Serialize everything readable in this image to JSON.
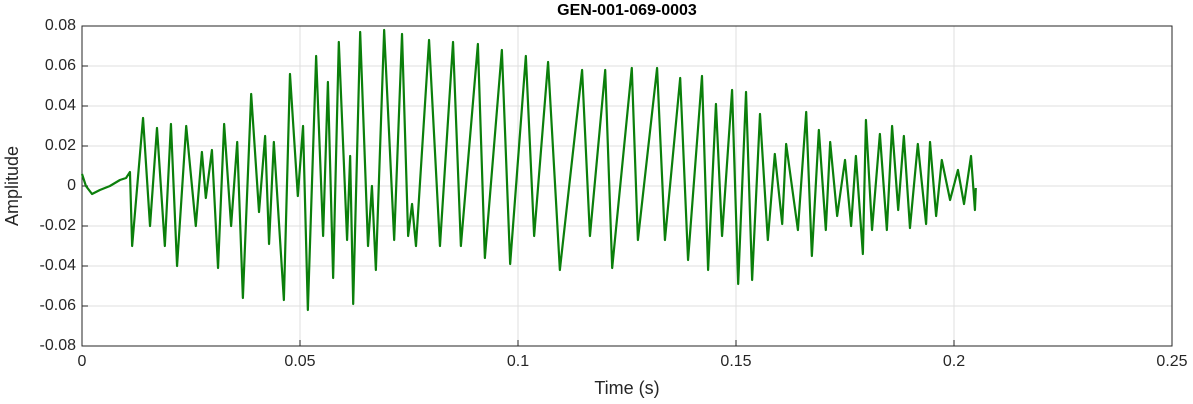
{
  "chart_data": {
    "type": "line",
    "title": "GEN-001-069-0003",
    "x_label": "Time (s)",
    "y_label": "Amplitude",
    "xlim": [
      0,
      0.25
    ],
    "xticks": [
      0,
      0.05,
      0.1,
      0.15,
      0.2,
      0.25
    ],
    "ylim": [
      -0.08,
      0.08
    ],
    "yticks": [
      -0.08,
      -0.06,
      -0.04,
      -0.02,
      0,
      0.02,
      0.04,
      0.06,
      0.08
    ],
    "grid": true,
    "series": [
      {
        "color": "#0b7f0b",
        "x": [
          0,
          0.0009,
          0.0023,
          0.0041,
          0.0064,
          0.0087,
          0.0101,
          0.011,
          0.0115,
          0.014,
          0.0156,
          0.0172,
          0.019,
          0.0204,
          0.0218,
          0.0239,
          0.0261,
          0.0275,
          0.0284,
          0.0298,
          0.0312,
          0.0326,
          0.0342,
          0.0356,
          0.0369,
          0.0388,
          0.0406,
          0.042,
          0.0429,
          0.044,
          0.0463,
          0.0477,
          0.0495,
          0.0507,
          0.0518,
          0.0537,
          0.0553,
          0.0564,
          0.0576,
          0.0589,
          0.0608,
          0.0615,
          0.0622,
          0.0638,
          0.0656,
          0.0665,
          0.0674,
          0.0693,
          0.0716,
          0.0734,
          0.0748,
          0.0757,
          0.0766,
          0.0796,
          0.0821,
          0.0851,
          0.0869,
          0.0908,
          0.0924,
          0.0963,
          0.0982,
          0.1018,
          0.1037,
          0.1069,
          0.1087,
          0.1096,
          0.1147,
          0.1165,
          0.12,
          0.1216,
          0.1261,
          0.1275,
          0.1319,
          0.1337,
          0.1372,
          0.139,
          0.1422,
          0.1436,
          0.1454,
          0.1468,
          0.1491,
          0.1505,
          0.1523,
          0.1537,
          0.1555,
          0.1573,
          0.1589,
          0.1606,
          0.1615,
          0.1642,
          0.1661,
          0.1674,
          0.169,
          0.1706,
          0.1716,
          0.1732,
          0.175,
          0.1764,
          0.1775,
          0.1791,
          0.1798,
          0.1812,
          0.183,
          0.1846,
          0.1858,
          0.1872,
          0.1885,
          0.1899,
          0.1917,
          0.1936,
          0.1945,
          0.1959,
          0.1972,
          0.1991,
          0.2009,
          0.2023,
          0.2039,
          0.2048,
          0.205
        ],
        "values": [
          0.006,
          0,
          -0.004,
          -0.002,
          0,
          0.003,
          0.004,
          0.007,
          -0.03,
          0.034,
          -0.02,
          0.029,
          -0.03,
          0.031,
          -0.04,
          0.03,
          -0.02,
          0.017,
          -0.006,
          0.018,
          -0.041,
          0.031,
          -0.02,
          0.022,
          -0.056,
          0.046,
          -0.013,
          0.025,
          -0.029,
          0.022,
          -0.057,
          0.056,
          -0.005,
          0.03,
          -0.062,
          0.065,
          -0.025,
          0.052,
          -0.046,
          0.072,
          -0.027,
          0.015,
          -0.059,
          0.077,
          -0.03,
          0,
          -0.042,
          0.078,
          -0.027,
          0.076,
          -0.025,
          -0.009,
          -0.03,
          0.073,
          -0.03,
          0.072,
          -0.03,
          0.071,
          -0.036,
          0.068,
          -0.039,
          0.065,
          -0.025,
          0.062,
          -0.007,
          -0.042,
          0.058,
          -0.025,
          0.058,
          -0.041,
          0.059,
          -0.027,
          0.059,
          -0.027,
          0.054,
          -0.037,
          0.055,
          -0.042,
          0.041,
          -0.025,
          0.048,
          -0.049,
          0.047,
          -0.047,
          0.036,
          -0.027,
          0.016,
          -0.019,
          0.021,
          -0.022,
          0.037,
          -0.035,
          0.028,
          -0.022,
          0.022,
          -0.015,
          0.013,
          -0.02,
          0.015,
          -0.034,
          0.033,
          -0.022,
          0.026,
          -0.022,
          0.03,
          -0.012,
          0.025,
          -0.021,
          0.021,
          -0.019,
          0.022,
          -0.015,
          0.013,
          -0.007,
          0.008,
          -0.009,
          0.015,
          -0.012,
          -0.001
        ]
      }
    ]
  }
}
